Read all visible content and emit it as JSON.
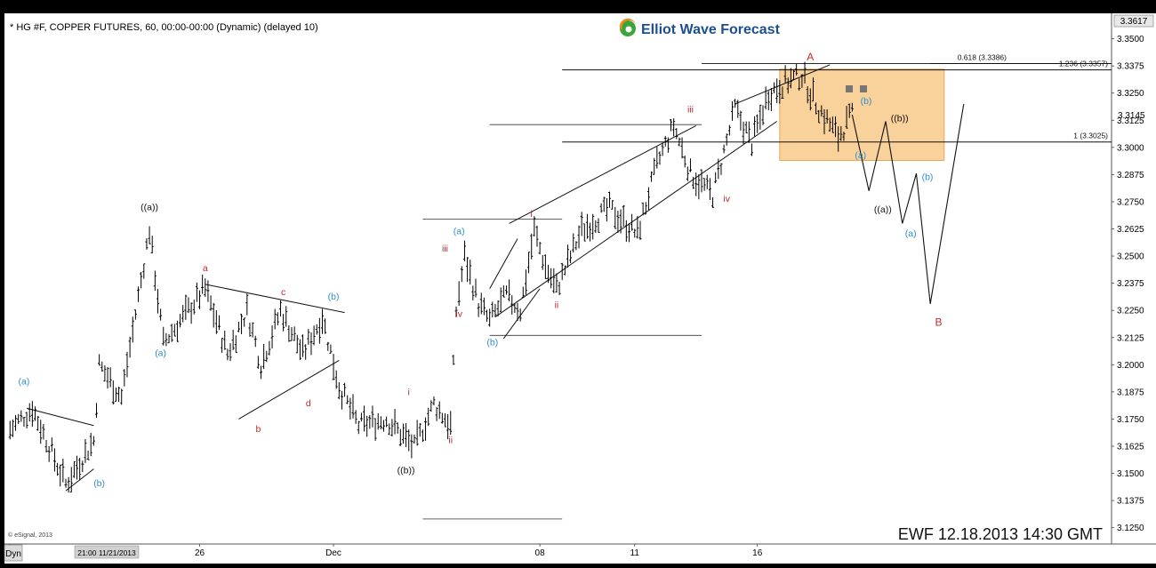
{
  "header": {
    "symbol_line": "* HG #F, COPPER FUTURES, 60, 00:00-00:00 (Dynamic) (delayed 10)"
  },
  "logo": {
    "text": "Elliot Wave Forecast"
  },
  "watermark": {
    "stamp": "EWF 12.18.2013  14:30 GMT"
  },
  "copyright": "© eSignal, 2013",
  "bottom_bar": {
    "mode_label": "Dyn",
    "cursor_label": "21:00 11/21/2013"
  },
  "colors": {
    "background": "#ffffff",
    "bars": "#000000",
    "label_red": "#c0282d",
    "label_blue": "#2f8fcf",
    "label_black": "#111111",
    "target_zone": "#f7c98a",
    "target_zone_border": "#e29a3c",
    "logo_blue": "#1c4f8f",
    "logo_green": "#3aa63a",
    "logo_orange": "#f08a1d"
  },
  "chart_data": {
    "type": "line",
    "title": "",
    "xlabel": "",
    "ylabel": "",
    "interval": "60",
    "ylim": [
      3.1175,
      3.3617
    ],
    "y_ticks": [
      "3.1250",
      "3.1375",
      "3.1500",
      "3.1625",
      "3.1750",
      "3.1875",
      "3.2000",
      "3.2125",
      "3.2250",
      "3.2375",
      "3.2500",
      "3.2625",
      "3.2750",
      "3.2875",
      "3.3000",
      "3.3125",
      "3.3250",
      "3.3375",
      "3.3500"
    ],
    "x_ticks": [
      {
        "label": "21",
        "bar": 0
      },
      {
        "label": "26",
        "bar": 68
      },
      {
        "label": "Dec",
        "bar": 116
      },
      {
        "label": "08",
        "bar": 190
      },
      {
        "label": "11",
        "bar": 224
      },
      {
        "label": "16",
        "bar": 268
      }
    ],
    "x_range_bars": [
      -2,
      395
    ],
    "last_price": "3.3617",
    "current_price": "3.3145",
    "price_path": [
      [
        0,
        3.17
      ],
      [
        8,
        3.18
      ],
      [
        20,
        3.145
      ],
      [
        30,
        3.165
      ],
      [
        32,
        3.2
      ],
      [
        40,
        3.185
      ],
      [
        50,
        3.262
      ],
      [
        55,
        3.21
      ],
      [
        70,
        3.235
      ],
      [
        78,
        3.205
      ],
      [
        85,
        3.225
      ],
      [
        90,
        3.2
      ],
      [
        97,
        3.225
      ],
      [
        105,
        3.205
      ],
      [
        112,
        3.222
      ],
      [
        118,
        3.19
      ],
      [
        125,
        3.172
      ],
      [
        135,
        3.175
      ],
      [
        145,
        3.162
      ],
      [
        152,
        3.182
      ],
      [
        158,
        3.172
      ],
      [
        160,
        3.225
      ],
      [
        163,
        3.25
      ],
      [
        168,
        3.228
      ],
      [
        172,
        3.22
      ],
      [
        178,
        3.232
      ],
      [
        183,
        3.225
      ],
      [
        188,
        3.262
      ],
      [
        192,
        3.245
      ],
      [
        196,
        3.235
      ],
      [
        205,
        3.262
      ],
      [
        215,
        3.272
      ],
      [
        225,
        3.26
      ],
      [
        232,
        3.292
      ],
      [
        238,
        3.31
      ],
      [
        244,
        3.288
      ],
      [
        252,
        3.278
      ],
      [
        260,
        3.318
      ],
      [
        266,
        3.302
      ],
      [
        272,
        3.325
      ],
      [
        278,
        3.33
      ],
      [
        284,
        3.333
      ],
      [
        290,
        3.318
      ],
      [
        297,
        3.305
      ],
      [
        302,
        3.315
      ]
    ],
    "projection_path": [
      [
        302,
        3.315
      ],
      [
        308,
        3.28
      ],
      [
        314,
        3.312
      ],
      [
        320,
        3.265
      ],
      [
        325,
        3.288
      ],
      [
        330,
        3.228
      ],
      [
        342,
        3.32
      ]
    ],
    "trend_lines": [
      {
        "x1": 6,
        "y1": 3.18,
        "x2": 30,
        "y2": 3.172
      },
      {
        "x1": 20,
        "y1": 3.142,
        "x2": 30,
        "y2": 3.152
      },
      {
        "x1": 70,
        "y1": 3.237,
        "x2": 120,
        "y2": 3.224
      },
      {
        "x1": 82,
        "y1": 3.175,
        "x2": 118,
        "y2": 3.202
      },
      {
        "x1": 172,
        "y1": 3.235,
        "x2": 182,
        "y2": 3.258
      },
      {
        "x1": 177,
        "y1": 3.212,
        "x2": 190,
        "y2": 3.235
      },
      {
        "x1": 174,
        "y1": 3.222,
        "x2": 275,
        "y2": 3.312
      },
      {
        "x1": 179,
        "y1": 3.265,
        "x2": 246,
        "y2": 3.31
      },
      {
        "x1": 260,
        "y1": 3.32,
        "x2": 294,
        "y2": 3.338
      }
    ],
    "short_lines": [
      {
        "from": 148,
        "to": 198,
        "y": 3.267
      },
      {
        "from": 148,
        "to": 198,
        "y": 3.129
      },
      {
        "from": 172,
        "to": 248,
        "y": 3.2135
      },
      {
        "from": 172,
        "to": 248,
        "y": 3.3105
      },
      {
        "from": 248,
        "to": 330,
        "y": 3.3386
      }
    ],
    "levels": [
      {
        "label": "1.236 (3.3357)",
        "value": 3.3357,
        "from": 198
      },
      {
        "label": "1 (3.3025)",
        "value": 3.3025,
        "from": 198
      },
      {
        "label": "0.618 (3.3386)",
        "value": 3.3386,
        "from": 248
      }
    ],
    "target_zone": {
      "x_from": 276,
      "x_to": 335,
      "y_low": 3.294,
      "y_high": 3.336
    },
    "wave_labels": [
      {
        "text": "(a)",
        "x": 5,
        "y": 3.191,
        "color": "blue"
      },
      {
        "text": "(b)",
        "x": 32,
        "y": 3.144,
        "color": "blue"
      },
      {
        "text": "((a))",
        "x": 50,
        "y": 3.271,
        "color": "black"
      },
      {
        "text": "(a)",
        "x": 54,
        "y": 3.204,
        "color": "blue"
      },
      {
        "text": "a",
        "x": 70,
        "y": 3.243,
        "color": "red"
      },
      {
        "text": "b",
        "x": 89,
        "y": 3.169,
        "color": "red"
      },
      {
        "text": "c",
        "x": 98,
        "y": 3.232,
        "color": "red"
      },
      {
        "text": "d",
        "x": 107,
        "y": 3.181,
        "color": "red"
      },
      {
        "text": "(b)",
        "x": 116,
        "y": 3.23,
        "color": "blue"
      },
      {
        "text": "((b))",
        "x": 142,
        "y": 3.15,
        "color": "black"
      },
      {
        "text": "i",
        "x": 143,
        "y": 3.186,
        "color": "red"
      },
      {
        "text": "ii",
        "x": 158,
        "y": 3.164,
        "color": "red"
      },
      {
        "text": "iii",
        "x": 156,
        "y": 3.252,
        "color": "red"
      },
      {
        "text": "iv",
        "x": 161,
        "y": 3.222,
        "color": "red"
      },
      {
        "text": "(a)",
        "x": 161,
        "y": 3.26,
        "color": "blue"
      },
      {
        "text": "(b)",
        "x": 173,
        "y": 3.209,
        "color": "blue"
      },
      {
        "text": "i",
        "x": 187,
        "y": 3.268,
        "color": "red"
      },
      {
        "text": "ii",
        "x": 196,
        "y": 3.226,
        "color": "red"
      },
      {
        "text": "iii",
        "x": 244,
        "y": 3.316,
        "color": "red"
      },
      {
        "text": "iv",
        "x": 257,
        "y": 3.275,
        "color": "red"
      },
      {
        "text": "A",
        "x": 287,
        "y": 3.34,
        "color": "red"
      },
      {
        "text": "(b)",
        "x": 307,
        "y": 3.32,
        "color": "blue"
      },
      {
        "text": "((b))",
        "x": 319,
        "y": 3.312,
        "color": "black"
      },
      {
        "text": "(a)",
        "x": 305,
        "y": 3.295,
        "color": "blue"
      },
      {
        "text": "((a))",
        "x": 313,
        "y": 3.27,
        "color": "black"
      },
      {
        "text": "(b)",
        "x": 329,
        "y": 3.285,
        "color": "blue"
      },
      {
        "text": "(a)",
        "x": 323,
        "y": 3.259,
        "color": "blue"
      },
      {
        "text": "B",
        "x": 333,
        "y": 3.218,
        "color": "red"
      }
    ]
  }
}
